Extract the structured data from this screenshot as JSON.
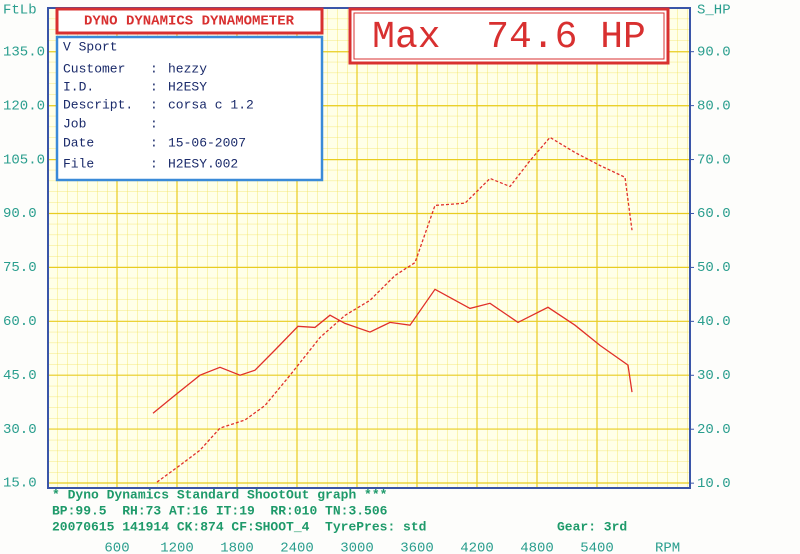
{
  "header": {
    "title": "DYNO DYNAMICS DYNAMOMETER",
    "max": "Max  74.6 HP"
  },
  "info": {
    "name": "V Sport",
    "separator": ":",
    "rows": [
      [
        "Customer",
        "hezzy"
      ],
      [
        "I.D.",
        "H2ESY"
      ],
      [
        "Descript.",
        "corsa c 1.2"
      ],
      [
        "Job"
      ],
      [
        "Date",
        "15-06-2007"
      ]
    ],
    "file": [
      "File",
      "H2ESY.002"
    ]
  },
  "footer": {
    "lines": [
      "* Dyno Dynamics Standard ShootOut graph ***",
      "BP:99.5  RH:73 AT:16 IT:19  RR:010 TN:3.506",
      "20070615 141914 CK:874 CF:SHOOT_4  TyrePres: std"
    ],
    "gear": "Gear: 3rd"
  },
  "chart_data": {
    "type": "line",
    "xlabel": "RPM",
    "ylabel": "FtLb",
    "y2label": "S_HP",
    "grid": true,
    "xlim": [
      -90,
      6330
    ],
    "ylim": [
      13.6,
      147.2
    ],
    "y2lim": [
      9.1,
      98.1
    ],
    "xticks": [
      600,
      1200,
      1800,
      2400,
      3000,
      3600,
      4200,
      4800,
      5400
    ],
    "yticks": [
      {
        "value": 15,
        "label": "15.0"
      },
      {
        "value": 30,
        "label": "30.0"
      },
      {
        "value": 45,
        "label": "45.0"
      },
      {
        "value": 60,
        "label": "60.0"
      },
      {
        "value": 75,
        "label": "75.0"
      },
      {
        "value": 90,
        "label": "90.0"
      },
      {
        "value": 105,
        "label": "105.0"
      },
      {
        "value": 120,
        "label": "120.0"
      },
      {
        "value": 135,
        "label": "135.0"
      }
    ],
    "y2ticks": [
      {
        "value": 10,
        "label": "10.0"
      },
      {
        "value": 20,
        "label": "20.0"
      },
      {
        "value": 30,
        "label": "30.0"
      },
      {
        "value": 40,
        "label": "40.0"
      },
      {
        "value": 50,
        "label": "50.0"
      },
      {
        "value": 60,
        "label": "60.0"
      },
      {
        "value": 70,
        "label": "70.0"
      },
      {
        "value": 80,
        "label": "80.0"
      },
      {
        "value": 90,
        "label": "90.0"
      }
    ],
    "series": [
      {
        "color": "#e0302a",
        "dashed": false,
        "x": [
          960,
          1180,
          1430,
          1630,
          1830,
          1980,
          2180,
          2410,
          2580,
          2730,
          2880,
          3130,
          3330,
          3530,
          3780,
          4130,
          4330,
          4610,
          4910,
          5180,
          5430,
          5710,
          5750
        ],
        "values": [
          34.4,
          39.4,
          45,
          47.2,
          45,
          46.4,
          52,
          58.6,
          58.3,
          61.7,
          59.4,
          57,
          59.7,
          58.9,
          68.9,
          63.6,
          65,
          59.7,
          63.9,
          58.9,
          53.3,
          47.8,
          40.3
        ]
      },
      {
        "color": "#e0302a",
        "dashed": true,
        "axis": "y2",
        "x": [
          1000,
          1230,
          1430,
          1630,
          1880,
          2080,
          2330,
          2630,
          2880,
          3130,
          3380,
          3580,
          3780,
          4080,
          4330,
          4530,
          4730,
          4930,
          5180,
          5430,
          5680,
          5750
        ],
        "values": [
          10.2,
          13.3,
          16.1,
          20.2,
          21.7,
          24.4,
          30,
          37,
          41.1,
          43.9,
          48.5,
          50.9,
          61.5,
          61.9,
          66.5,
          65,
          69.8,
          74.1,
          71.3,
          68.9,
          66.7,
          56.9
        ]
      }
    ]
  }
}
